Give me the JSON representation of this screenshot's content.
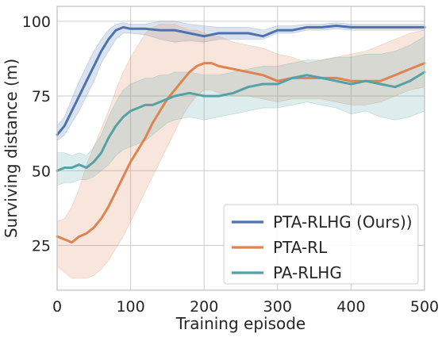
{
  "chart_data": {
    "type": "line",
    "title": "",
    "xlabel": "Training episode",
    "ylabel": "Surviving distance (m)",
    "xlim": [
      0,
      500
    ],
    "ylim": [
      10,
      105
    ],
    "xticks": [
      "0",
      "100",
      "200",
      "300",
      "400",
      "500"
    ],
    "yticks": [
      "25",
      "50",
      "75",
      "100"
    ],
    "grid": true,
    "legend_position": "bottom-right",
    "series": [
      {
        "name": "PTA-RLHG (Ours))",
        "color": "#4c72b0",
        "x": [
          0,
          10,
          20,
          30,
          40,
          50,
          60,
          70,
          80,
          90,
          100,
          120,
          140,
          160,
          180,
          200,
          220,
          240,
          260,
          280,
          300,
          320,
          340,
          360,
          380,
          400,
          420,
          440,
          460,
          480,
          500
        ],
        "y": [
          62,
          65,
          70,
          75,
          80,
          85,
          90,
          94,
          97,
          98,
          97.5,
          97.5,
          97,
          97,
          96,
          95,
          96,
          96,
          96,
          95,
          97,
          97,
          98,
          98,
          98.5,
          98,
          98,
          98,
          98,
          98,
          98
        ],
        "lower": [
          60,
          62,
          66,
          70,
          75,
          80,
          86,
          90,
          94,
          96,
          96,
          95.5,
          94,
          93,
          93.5,
          93,
          94,
          94,
          94,
          94,
          96,
          96,
          97,
          97,
          97.5,
          97,
          97,
          97,
          97,
          97,
          97
        ],
        "upper": [
          65,
          68,
          74,
          80,
          85,
          90,
          94,
          97,
          99,
          99.5,
          99,
          99,
          100,
          100,
          99,
          98.5,
          98,
          98,
          98,
          97,
          98.5,
          98.5,
          99,
          99,
          99.5,
          99,
          99,
          99,
          99,
          99,
          99
        ]
      },
      {
        "name": "PTA-RL",
        "color": "#dd8452",
        "x": [
          0,
          10,
          20,
          30,
          40,
          50,
          60,
          70,
          80,
          90,
          100,
          110,
          120,
          130,
          140,
          150,
          160,
          170,
          180,
          190,
          200,
          210,
          220,
          240,
          260,
          280,
          300,
          320,
          340,
          360,
          380,
          400,
          420,
          440,
          460,
          480,
          500
        ],
        "y": [
          28,
          27,
          26,
          28,
          29,
          31,
          34,
          38,
          43,
          48,
          53,
          57,
          61,
          66,
          70,
          74,
          77,
          80,
          83,
          85,
          86,
          86,
          85,
          84,
          83,
          82,
          80,
          81,
          81,
          81,
          81,
          80,
          80,
          80,
          82,
          84,
          86
        ],
        "lower": [
          18,
          16,
          14,
          14,
          14,
          15,
          17,
          20,
          24,
          28,
          33,
          38,
          43,
          48,
          53,
          58,
          63,
          68,
          72,
          75,
          77,
          77,
          76,
          75,
          75,
          74,
          73,
          74,
          74,
          74,
          73,
          72,
          72,
          73,
          75,
          77,
          78
        ],
        "upper": [
          33,
          34,
          38,
          44,
          52,
          58,
          64,
          70,
          77,
          83,
          88,
          92,
          96,
          98,
          99,
          99,
          99,
          98,
          97,
          97,
          96,
          95,
          95,
          93,
          92,
          91,
          89,
          88,
          86,
          87,
          88,
          89,
          90,
          92,
          94,
          96,
          97
        ]
      },
      {
        "name": "PA-RLHG",
        "color": "#55a1a5",
        "x": [
          0,
          10,
          20,
          30,
          40,
          50,
          60,
          70,
          80,
          90,
          100,
          110,
          120,
          130,
          140,
          150,
          160,
          180,
          200,
          220,
          240,
          260,
          280,
          300,
          320,
          340,
          360,
          380,
          400,
          420,
          440,
          460,
          480,
          500
        ],
        "y": [
          50,
          51,
          51,
          52,
          51,
          53,
          56,
          61,
          65,
          68,
          70,
          71,
          72,
          72,
          73,
          74,
          75,
          76,
          75,
          75,
          76,
          78,
          79,
          79,
          81,
          82,
          81,
          80,
          79,
          80,
          79,
          78,
          80,
          83
        ],
        "lower": [
          45,
          46,
          46,
          47,
          47,
          48,
          50,
          52,
          55,
          57,
          58,
          59,
          60,
          62,
          64,
          66,
          67,
          68,
          67,
          68,
          69,
          70,
          71,
          71,
          72,
          73,
          72,
          71,
          69,
          70,
          68,
          67,
          68,
          70
        ],
        "upper": [
          56,
          56,
          55,
          56,
          55,
          58,
          62,
          68,
          73,
          77,
          79,
          80,
          81,
          81,
          82,
          82,
          83,
          83,
          82,
          82,
          83,
          84,
          85,
          85,
          86,
          87,
          87,
          88,
          88,
          89,
          89,
          90,
          92,
          95
        ]
      }
    ]
  }
}
